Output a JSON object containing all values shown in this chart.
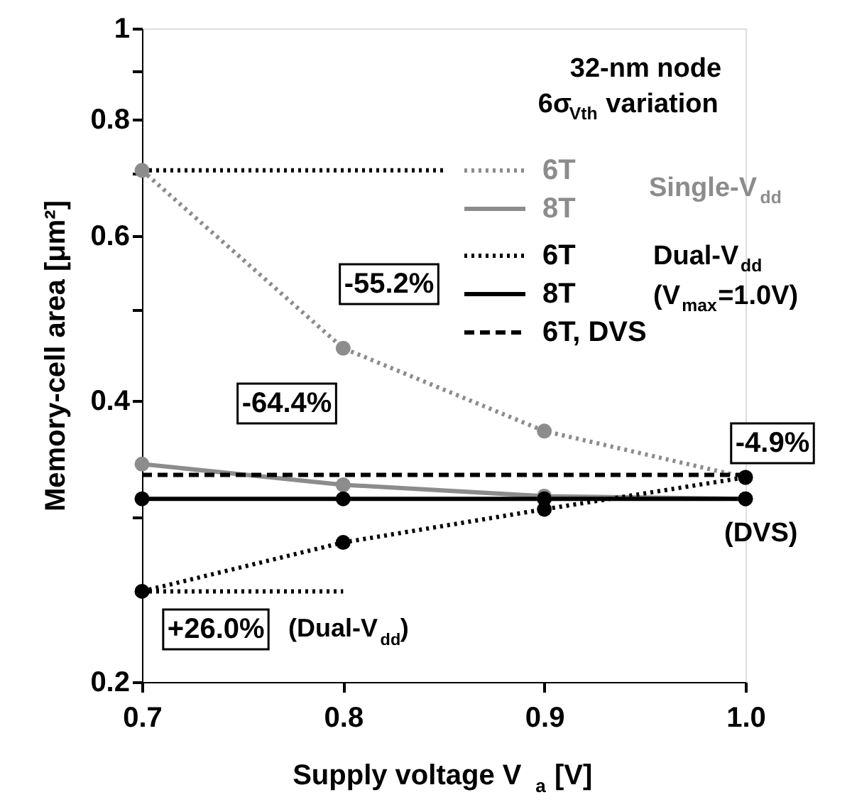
{
  "chart_data": {
    "type": "line",
    "xlabel": "Supply voltage  V$_{a}$ [V]",
    "ylabel": "Memory-cell area  [μm²]",
    "xlim": [
      0.7,
      1.0
    ],
    "xticks": [
      0.7,
      0.8,
      0.9,
      {
        "value": 1.0,
        "label": "1.0"
      }
    ],
    "ylim": [
      0.2,
      1
    ],
    "yticks": [
      0.2,
      {
        "value": 0.3,
        "label": null
      },
      0.4,
      {
        "value": 0.5,
        "label": null
      },
      0.6,
      {
        "value": 0.7,
        "label": null
      },
      0.8,
      {
        "value": 0.9,
        "label": null
      },
      1
    ],
    "log": true,
    "grid": false,
    "legend": "top right",
    "series": [
      {
        "name": "6T",
        "color": "#8c8c8c",
        "line_style": "dotted",
        "marker": "circle",
        "x": [
          0.7,
          0.8,
          0.9,
          1.0
        ],
        "values": [
          0.705,
          0.455,
          0.371,
          0.331
        ]
      },
      {
        "name": "8T",
        "color": "#8c8c8c",
        "line_style": "solid",
        "marker": "circle",
        "x": [
          0.7,
          0.8,
          0.9,
          1.0
        ],
        "values": [
          0.342,
          0.325,
          0.316,
          0.314
        ]
      },
      {
        "name": "6T",
        "color": "#000000",
        "line_style": "dotted",
        "marker": "circle",
        "x": [
          0.7,
          0.8,
          0.9,
          1.0
        ],
        "values": [
          0.25,
          0.282,
          0.306,
          0.331
        ]
      },
      {
        "name": "8T",
        "color": "#000000",
        "line_style": "solid",
        "marker": "circle",
        "x": [
          0.7,
          0.8,
          0.9,
          1.0
        ],
        "values": [
          0.314,
          0.314,
          0.314,
          0.314
        ]
      },
      {
        "name": "6T, DVS",
        "color": "#000000",
        "line_style": "dashed",
        "marker": "none",
        "x": [
          0.7,
          1.0
        ],
        "values": [
          0.333,
          0.333
        ]
      },
      {
        "color": "#000000",
        "line_style": "dotted",
        "marker": "none",
        "x": [
          0.7,
          0.85
        ],
        "values": [
          0.705,
          0.705
        ]
      },
      {
        "color": "#000000",
        "line_style": "dotted",
        "marker": "none",
        "x": [
          0.7,
          0.8
        ],
        "values": [
          0.25,
          0.25
        ]
      }
    ],
    "annotations": [
      "32-nm node",
      "6σ$_{Vth}$ variation",
      "Single-V$_{dd}$",
      "Dual-V$_{dd}$",
      "(V$_{max}$=1.0V)",
      "(Dual-V$_{dd}$)",
      "(DVS)",
      "-64.4%",
      "-55.2%",
      "-4.9%",
      "+26.0%"
    ]
  }
}
